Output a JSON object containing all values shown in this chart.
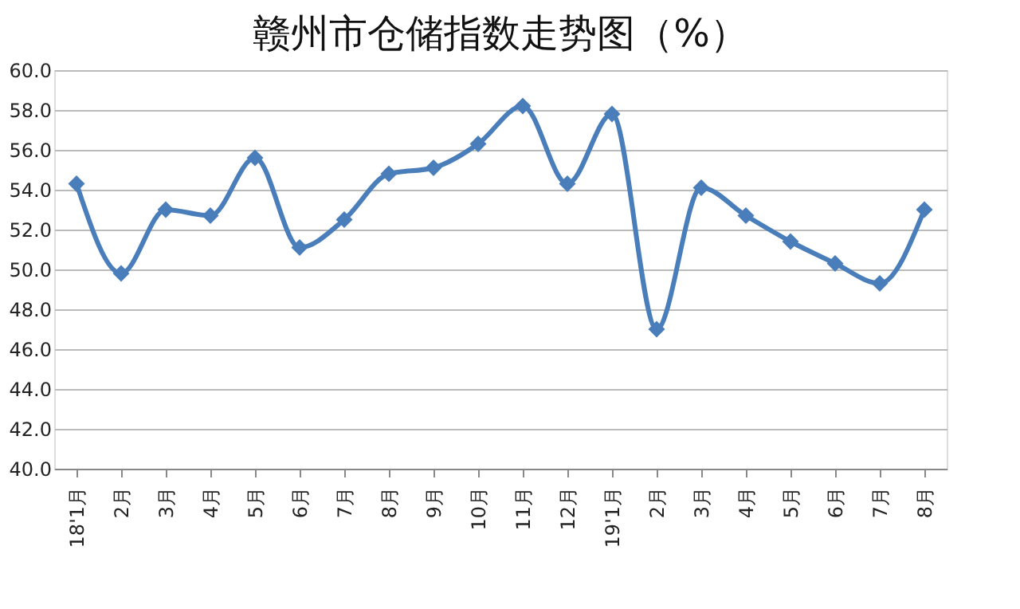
{
  "chart_data": {
    "type": "line",
    "title": "赣州市仓储指数走势图（%）",
    "categories": [
      "18'1月",
      "2月",
      "3月",
      "4月",
      "5月",
      "6月",
      "7月",
      "8月",
      "9月",
      "10月",
      "11月",
      "12月",
      "19'1月",
      "2月",
      "3月",
      "4月",
      "5月",
      "6月",
      "7月",
      "8月"
    ],
    "series": [
      {
        "color": "#4a7ebb",
        "values": [
          54.3,
          49.8,
          53.0,
          52.7,
          55.6,
          51.1,
          52.5,
          54.8,
          55.1,
          56.3,
          58.2,
          54.3,
          57.8,
          47.0,
          54.1,
          52.7,
          51.4,
          50.3,
          49.3,
          53.0
        ]
      }
    ],
    "ylim": [
      40,
      60
    ],
    "yticks": [
      {
        "value": 40,
        "label": "40.0"
      },
      {
        "value": 42,
        "label": "42.0"
      },
      {
        "value": 44,
        "label": "44.0"
      },
      {
        "value": 46,
        "label": "46.0"
      },
      {
        "value": 48,
        "label": "48.0"
      },
      {
        "value": 50,
        "label": "50.0"
      },
      {
        "value": 52,
        "label": "52.0"
      },
      {
        "value": 54,
        "label": "54.0"
      },
      {
        "value": 56,
        "label": "56.0"
      },
      {
        "value": 58,
        "label": "58.0"
      },
      {
        "value": 60,
        "label": "60.0"
      }
    ],
    "grid": "y",
    "marker": "diamond",
    "line_style": "solid"
  }
}
